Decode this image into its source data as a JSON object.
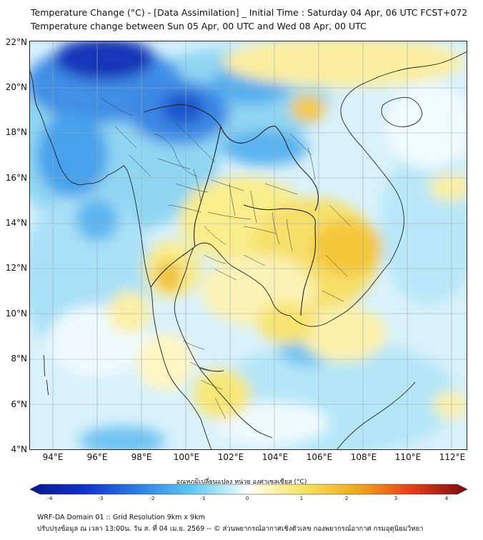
{
  "title_line1": "Temperature Change (°C) - [Data Assimilation] _ Initial Time : Saturday 04 Apr, 06 UTC FCST+072",
  "title_line2": "Temperature change between Sun 05 Apr, 00 UTC and Wed 08 Apr, 00 UTC",
  "lat_labels": [
    "22°N",
    "20°N",
    "18°N",
    "16°N",
    "14°N",
    "12°N",
    "10°N",
    "8°N",
    "6°N",
    "4°N"
  ],
  "lon_labels": [
    "94°E",
    "96°E",
    "98°E",
    "100°E",
    "102°E",
    "104°E",
    "106°E",
    "108°E",
    "110°E",
    "112°E"
  ],
  "colorbar": {
    "label": "อุณหภูมิเปลี่ยนแปลง หน่วย องศาเซลเซียส (°C)",
    "ticks": [
      "-4",
      "-3",
      "-2",
      "-1",
      "0",
      "1",
      "2",
      "3",
      "4"
    ],
    "min": -4,
    "max": 4
  },
  "colors": {
    "deep_blue": "#0a1e9e",
    "blue": "#2f78e0",
    "light_blue": "#7fd0f5",
    "pale": "#e6f7ff",
    "pale_yellow": "#fff7c8",
    "yellow": "#f4dd3e",
    "orange": "#f0a020"
  },
  "footer_line1": "WRF-DA Domain 01 :: Grid Resolution 9km x 9km",
  "footer_line2": "ปรับปรุงข้อมูล ณ เวลา 13:00น. วัน ส. ที่ 04 เม.ย. 2569 -- © ส่วนพยากรณ์อากาศเชิงตัวเลข กองพยากรณ์อากาศ กรมอุตุนิยมวิทยา"
}
